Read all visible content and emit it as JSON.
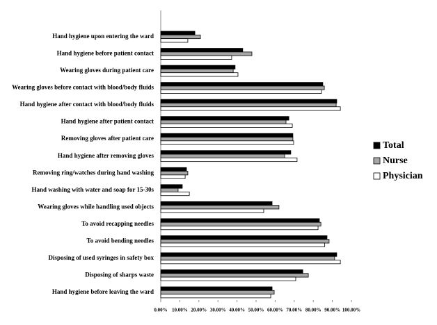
{
  "chart_data": {
    "type": "hbar",
    "categories": [
      "Hand hygiene upon entering the ward",
      "Hand hygiene before patient contact",
      "Wearing gloves during patient care",
      "Wearing gloves before contact with blood/body fluids",
      "Hand hygiene after contact with blood/body fluids",
      "Hand hygiene after patient contact",
      "Removing gloves after patient care",
      "Hand hygiene after removing gloves",
      "Removing ring/watches during hand washing",
      "Hand washing with water and soap for 15-30s",
      "Wearing gloves while handling used objects",
      "To avoid recapping needles",
      "To avoid bending needles",
      "Disposing of used syringes in safety box",
      "Disposing of sharps waste",
      "Hand hygiene before leaving the ward"
    ],
    "series": [
      {
        "name": "Total",
        "color": "#000000",
        "values": [
          17.9,
          43,
          39,
          85,
          92.3,
          67.2,
          69.3,
          68.2,
          13.5,
          11.3,
          58.4,
          83.2,
          87.2,
          92.3,
          74.5,
          58.4
        ]
      },
      {
        "name": "Nurse",
        "color": "#a6a6a6",
        "values": [
          20.8,
          47.8,
          38,
          85.8,
          92,
          65.7,
          69.3,
          65,
          14.2,
          9.1,
          62,
          84,
          88.3,
          91.2,
          77.4,
          59.5
        ]
      },
      {
        "name": "Physician",
        "color": "#ffffff",
        "values": [
          14.2,
          37.2,
          40.5,
          84.3,
          94.2,
          69,
          69.7,
          71.5,
          12.8,
          15,
          54,
          82.5,
          86,
          94.2,
          70.8,
          57.7
        ]
      }
    ],
    "xlim": [
      0,
      100
    ],
    "xticks": [
      {
        "value": 0,
        "label": "0.00%"
      },
      {
        "value": 10,
        "label": "10.00%"
      },
      {
        "value": 20,
        "label": "20.00%"
      },
      {
        "value": 30,
        "label": "30.00%"
      },
      {
        "value": 40,
        "label": "40.00%"
      },
      {
        "value": 50,
        "label": "50.00%"
      },
      {
        "value": 60,
        "label": "60.00%"
      },
      {
        "value": 70,
        "label": "70.00%"
      },
      {
        "value": 80,
        "label": "80.00%"
      },
      {
        "value": 90,
        "label": "90.00%"
      },
      {
        "value": 100,
        "label": "100.00%"
      }
    ],
    "grid": false,
    "legend": "right"
  }
}
